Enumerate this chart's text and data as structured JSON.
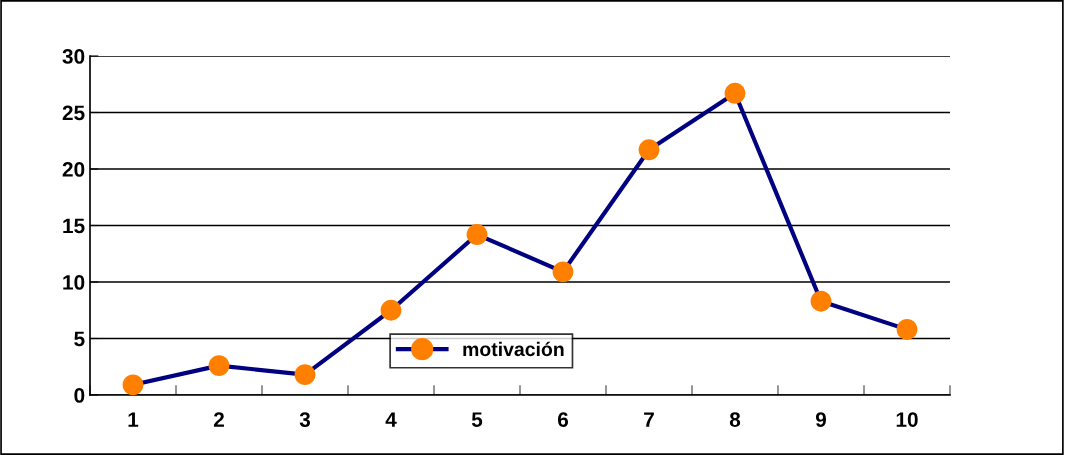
{
  "chart_data": {
    "type": "line",
    "categories": [
      "1",
      "2",
      "3",
      "4",
      "5",
      "6",
      "7",
      "8",
      "9",
      "10"
    ],
    "series": [
      {
        "name": "motivación",
        "color": "#000080",
        "colors": [
          "#ff8000",
          "#ff8000",
          "#ff8000",
          "#ff8000",
          "#ff8000",
          "#ff8000",
          "#ff8000",
          "#ff8000",
          "#ff8000",
          "#ff8000"
        ],
        "values": [
          0.9,
          2.6,
          1.8,
          7.5,
          14.2,
          10.9,
          21.7,
          26.7,
          8.3,
          5.8
        ]
      }
    ],
    "ylim": [
      0,
      30
    ],
    "yticks": [
      0,
      5,
      10,
      15,
      20,
      25,
      30
    ],
    "grid": "y",
    "legend": "bottom",
    "marker": "circle",
    "line_style": "solid"
  }
}
